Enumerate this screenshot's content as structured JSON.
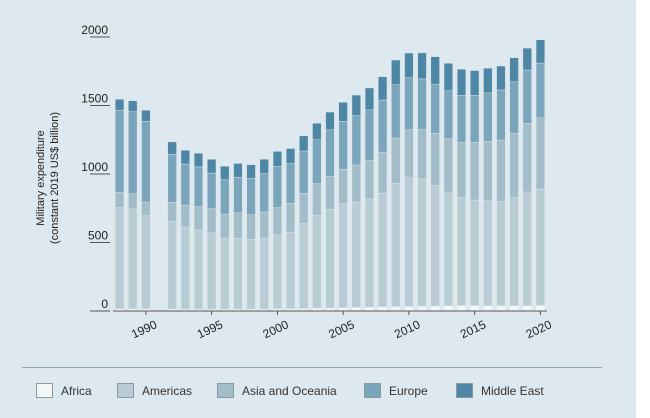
{
  "chart_data": {
    "type": "bar",
    "stacked": true,
    "title": "",
    "ylabel_line1": "Military expenditure",
    "ylabel_line2": "(constant 2019 US$ billion)",
    "xlabel": "",
    "ylim": [
      0,
      2000
    ],
    "yticks": [
      0,
      500,
      1000,
      1500,
      2000
    ],
    "xticks": [
      "1990",
      "1995",
      "2000",
      "2005",
      "2010",
      "2015",
      "2020"
    ],
    "grid": false,
    "legend_position": "bottom",
    "x": [
      1988,
      1989,
      1990,
      1991,
      1992,
      1993,
      1994,
      1995,
      1996,
      1997,
      1998,
      1999,
      2000,
      2001,
      2002,
      2003,
      2004,
      2005,
      2006,
      2007,
      2008,
      2009,
      2010,
      2011,
      2012,
      2013,
      2014,
      2015,
      2016,
      2017,
      2018,
      2019,
      2020
    ],
    "series": [
      {
        "name": "Africa",
        "color": "#f4f6f7",
        "values": [
          15,
          15,
          15,
          null,
          14,
          13,
          12,
          12,
          12,
          12,
          12,
          13,
          15,
          16,
          18,
          20,
          22,
          24,
          26,
          28,
          30,
          32,
          33,
          34,
          36,
          38,
          40,
          40,
          38,
          38,
          38,
          39,
          40
        ]
      },
      {
        "name": "Americas",
        "color": "#b9ccd4",
        "values": [
          740,
          730,
          680,
          null,
          640,
          600,
          580,
          560,
          520,
          520,
          510,
          520,
          540,
          560,
          620,
          680,
          720,
          760,
          770,
          790,
          830,
          900,
          940,
          930,
          880,
          830,
          790,
          770,
          770,
          760,
          790,
          830,
          850
        ]
      },
      {
        "name": "Asia and Oceania",
        "color": "#a2bcc8",
        "values": [
          110,
          110,
          100,
          null,
          140,
          160,
          170,
          175,
          175,
          185,
          180,
          190,
          200,
          210,
          220,
          230,
          240,
          250,
          270,
          280,
          300,
          330,
          350,
          360,
          380,
          390,
          400,
          420,
          430,
          450,
          470,
          500,
          520
        ]
      },
      {
        "name": "Europe",
        "color": "#7aa5bb",
        "values": [
          600,
          600,
          590,
          null,
          350,
          300,
          290,
          260,
          250,
          260,
          265,
          280,
          300,
          290,
          310,
          320,
          340,
          350,
          360,
          370,
          380,
          390,
          380,
          370,
          360,
          350,
          345,
          345,
          355,
          365,
          375,
          390,
          400
        ]
      },
      {
        "name": "Middle East",
        "color": "#4e86a6",
        "values": [
          80,
          80,
          80,
          null,
          90,
          100,
          100,
          100,
          100,
          100,
          100,
          105,
          110,
          110,
          110,
          120,
          130,
          140,
          150,
          160,
          170,
          180,
          180,
          190,
          200,
          200,
          190,
          180,
          180,
          175,
          175,
          160,
          170
        ]
      }
    ]
  }
}
